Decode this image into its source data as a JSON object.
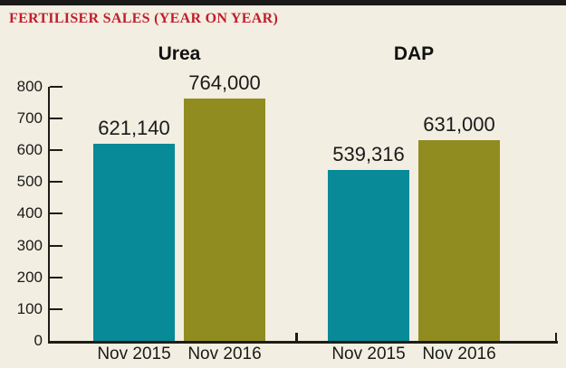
{
  "window": {
    "background": "#f2eee1",
    "top_border_color": "#1a1a1a"
  },
  "header": {
    "title": "FERTILISER SALES (YEAR ON YEAR)",
    "title_color": "#c01e2e"
  },
  "chart_data": {
    "type": "bar",
    "title": "FERTILISER SALES (YEAR ON YEAR)",
    "ylim": [
      0,
      800
    ],
    "y_ticks": [
      0,
      100,
      200,
      300,
      400,
      500,
      600,
      700,
      800
    ],
    "grid": false,
    "legend_position": "none",
    "axis_color": "#1d1c16",
    "bar_colors": {
      "nov_2015": "#088a99",
      "nov_2016": "#918c20"
    },
    "groups": [
      {
        "label": "Urea",
        "bars": [
          {
            "category": "Nov 2015",
            "value": 621140,
            "value_label": "621,140",
            "color": "#088a99"
          },
          {
            "category": "Nov 2016",
            "value": 764000,
            "value_label": "764,000",
            "color": "#918c20"
          }
        ]
      },
      {
        "label": "DAP",
        "bars": [
          {
            "category": "Nov 2015",
            "value": 539316,
            "value_label": "539,316",
            "color": "#088a99"
          },
          {
            "category": "Nov 2016",
            "value": 631000,
            "value_label": "631,000",
            "color": "#918c20"
          }
        ]
      }
    ]
  }
}
